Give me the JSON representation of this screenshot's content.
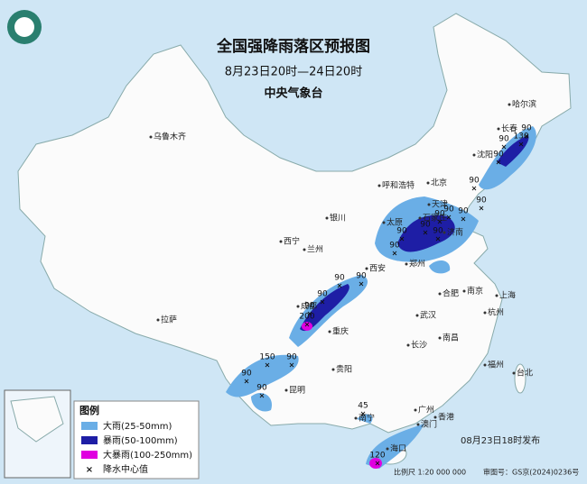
{
  "header": {
    "title": "全国强降雨落区预报图",
    "subtitle": "8月23日20时—24日20时",
    "issuer": "中央气象台"
  },
  "cities": [
    "哈尔滨",
    "长春",
    "沈阳",
    "北京",
    "天津",
    "呼和浩特",
    "石家庄",
    "太原",
    "济南",
    "银川",
    "西宁",
    "兰州",
    "郑州",
    "西安",
    "合肥",
    "南京",
    "上海",
    "成都",
    "武汉",
    "杭州",
    "重庆",
    "长沙",
    "南昌",
    "福州",
    "台北",
    "贵阳",
    "昆明",
    "南宁",
    "广州",
    "香港",
    "澳门",
    "海口",
    "乌鲁木齐",
    "拉萨"
  ],
  "rain_centers": [
    "90",
    "90",
    "130",
    "90",
    "90",
    "90",
    "90",
    "90",
    "90",
    "90",
    "90",
    "90",
    "90",
    "90",
    "90",
    "90",
    "90",
    "200",
    "150",
    "90",
    "90",
    "90",
    "45",
    "120"
  ],
  "legend": {
    "title": "图例",
    "items": [
      "大雨(25-50mm)",
      "暴雨(50-100mm)",
      "大暴雨(100-250mm)",
      "降水中心值"
    ]
  },
  "footer": {
    "issued": "08月23日18时发布",
    "scale": "比例尺 1:20 000 000",
    "approval": "审图号：GS京(2024)0236号"
  }
}
